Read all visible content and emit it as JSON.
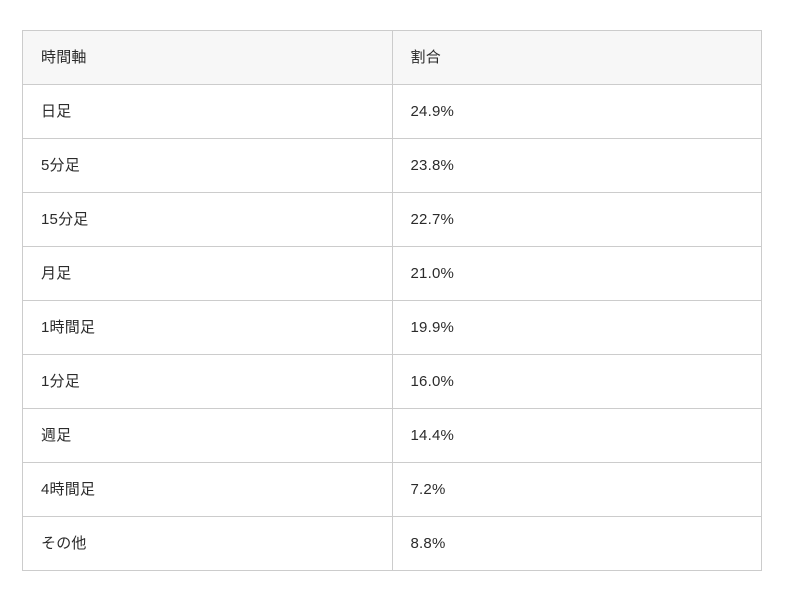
{
  "table": {
    "columns": [
      {
        "label": "時間軸"
      },
      {
        "label": "割合"
      }
    ],
    "rows": [
      {
        "label": "日足",
        "value": "24.9%"
      },
      {
        "label": "5分足",
        "value": "23.8%"
      },
      {
        "label": "15分足",
        "value": "22.7%"
      },
      {
        "label": "月足",
        "value": "21.0%"
      },
      {
        "label": "1時間足",
        "value": "19.9%"
      },
      {
        "label": "1分足",
        "value": "16.0%"
      },
      {
        "label": "週足",
        "value": "14.4%"
      },
      {
        "label": "4時間足",
        "value": "7.2%"
      },
      {
        "label": "その他",
        "value": "8.8%"
      }
    ]
  },
  "chart_data": {
    "type": "table",
    "title": "",
    "columns": [
      "時間軸",
      "割合"
    ],
    "categories": [
      "日足",
      "5分足",
      "15分足",
      "月足",
      "1時間足",
      "1分足",
      "週足",
      "4時間足",
      "その他"
    ],
    "values": [
      24.9,
      23.8,
      22.7,
      21.0,
      19.9,
      16.0,
      14.4,
      7.2,
      8.8
    ],
    "value_unit": "%"
  },
  "colors": {
    "header_background": "#f7f7f7",
    "border": "#cccccc",
    "text": "#2b2b2b",
    "page_background": "#ffffff"
  }
}
